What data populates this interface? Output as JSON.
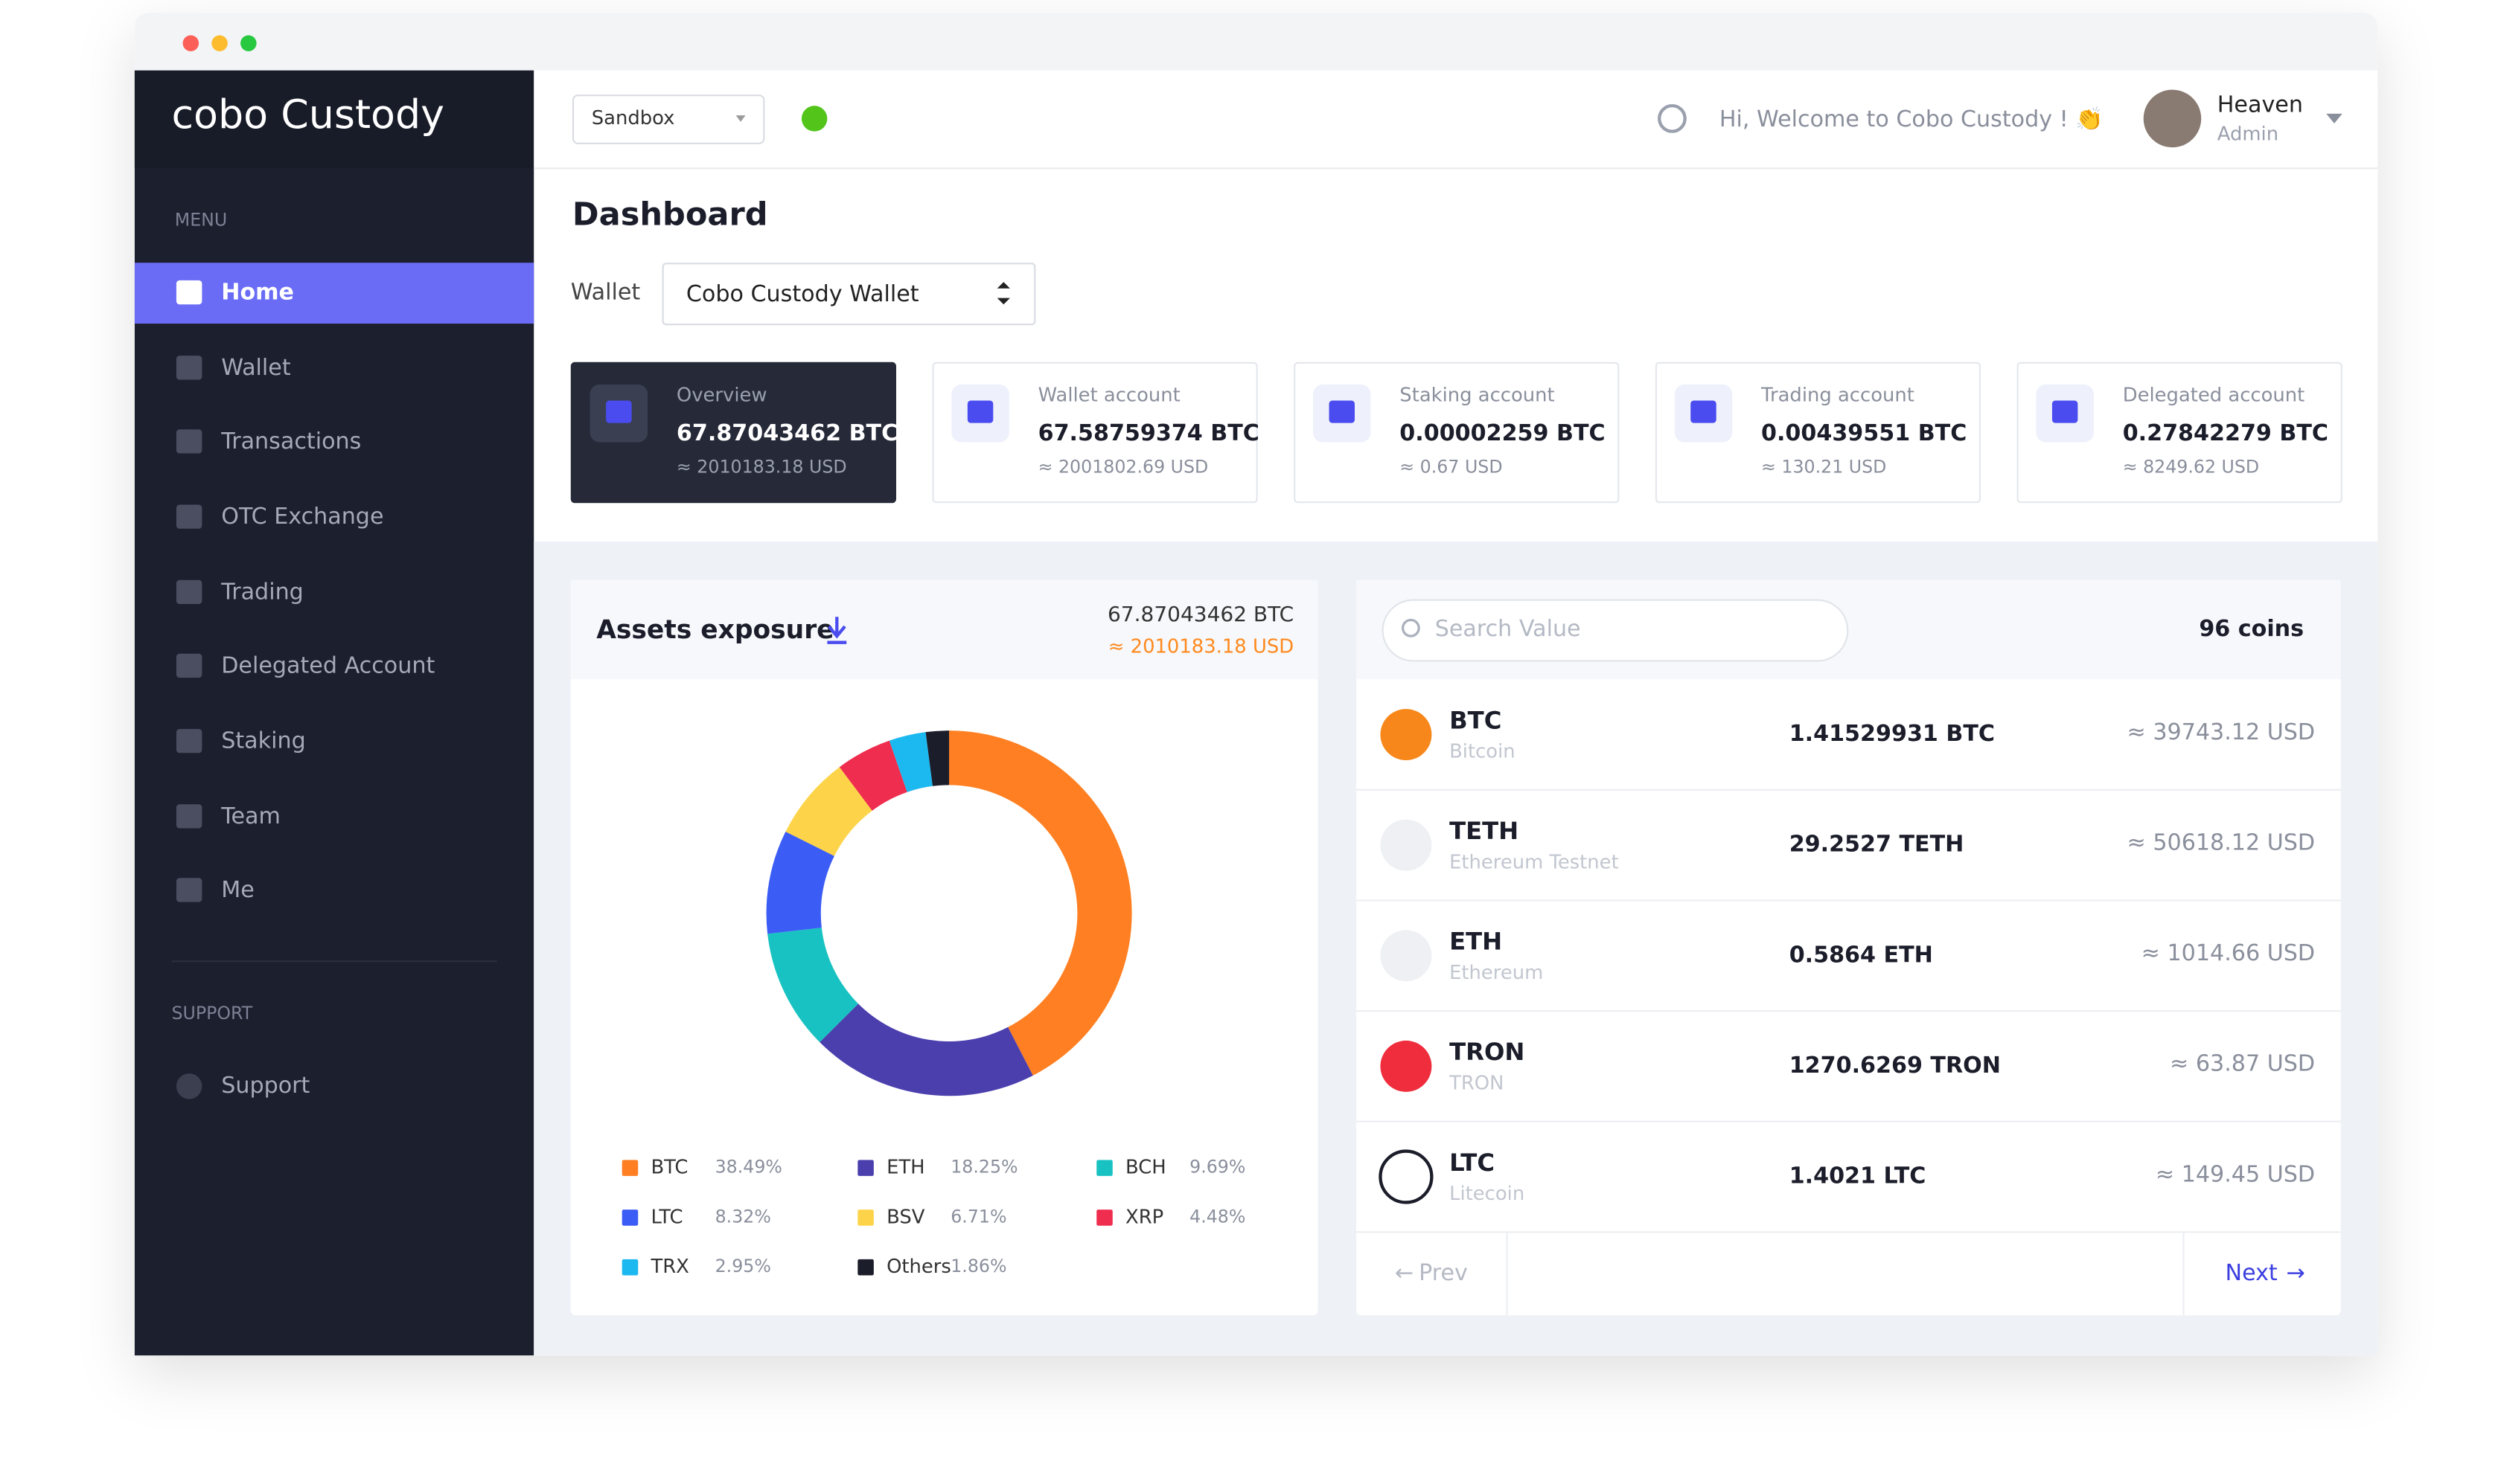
{
  "sidebar": {
    "logo": "cobo Custody",
    "menu_heading": "MENU",
    "menu": [
      "Home",
      "Wallet",
      "Transactions",
      "OTC Exchange",
      "Trading",
      "Delegated Account",
      "Staking",
      "Team",
      "Me"
    ],
    "support_heading": "SUPPORT",
    "support": "Support"
  },
  "header": {
    "environment": "Sandbox",
    "welcome": "Hi, Welcome to Cobo Custody ! 👏",
    "user_name": "Heaven",
    "user_role": "Admin"
  },
  "dashboard": {
    "title": "Dashboard",
    "wallet_label": "Wallet",
    "wallet": "Cobo Custody Wallet",
    "accounts": [
      {
        "label": "Overview",
        "btc": "67.87043462 BTC",
        "usd": "≈ 2010183.18 USD"
      },
      {
        "label": "Wallet account",
        "btc": "67.58759374 BTC",
        "usd": "≈ 2001802.69 USD"
      },
      {
        "label": "Staking account",
        "btc": "0.00002259 BTC",
        "usd": "≈ 0.67 USD"
      },
      {
        "label": "Trading account",
        "btc": "0.00439551 BTC",
        "usd": "≈ 130.21 USD"
      },
      {
        "label": "Delegated account",
        "btc": "0.27842279 BTC",
        "usd": "≈ 8249.62 USD"
      }
    ]
  },
  "chart_data": {
    "type": "pie",
    "title": "Assets exposure",
    "total": "67.87043462 BTC",
    "total_usd": "≈ 2010183.18 USD",
    "categories": [
      "BTC",
      "ETH",
      "BCH",
      "LTC",
      "BSV",
      "XRP",
      "TRX",
      "Others"
    ],
    "values": [
      38.49,
      18.25,
      9.69,
      8.32,
      6.71,
      4.48,
      2.95,
      1.86
    ],
    "value_labels": [
      "38.49%",
      "18.25%",
      "9.69%",
      "8.32%",
      "6.71%",
      "4.48%",
      "2.95%",
      "1.86%"
    ],
    "colors": [
      "#ff7f22",
      "#4b3fae",
      "#19c2c2",
      "#3b5cf5",
      "#fdd449",
      "#ef2d4f",
      "#1cb8f0",
      "#1b1d2a"
    ]
  },
  "coins": {
    "placeholder": "Search Value",
    "count": "96 coins",
    "rows": [
      {
        "symbol": "BTC",
        "name": "Bitcoin",
        "amount": "1.41529931 BTC",
        "usd": "≈ 39743.12 USD"
      },
      {
        "symbol": "TETH",
        "name": "Ethereum Testnet",
        "amount": "29.2527 TETH",
        "usd": "≈ 50618.12 USD"
      },
      {
        "symbol": "ETH",
        "name": "Ethereum",
        "amount": "0.5864 ETH",
        "usd": "≈ 1014.66 USD"
      },
      {
        "symbol": "TRON",
        "name": "TRON",
        "amount": "1270.6269 TRON",
        "usd": "≈ 63.87 USD"
      },
      {
        "symbol": "LTC",
        "name": "Litecoin",
        "amount": "1.4021 LTC",
        "usd": "≈ 149.45 USD"
      }
    ],
    "prev": "Prev",
    "next": "Next"
  }
}
